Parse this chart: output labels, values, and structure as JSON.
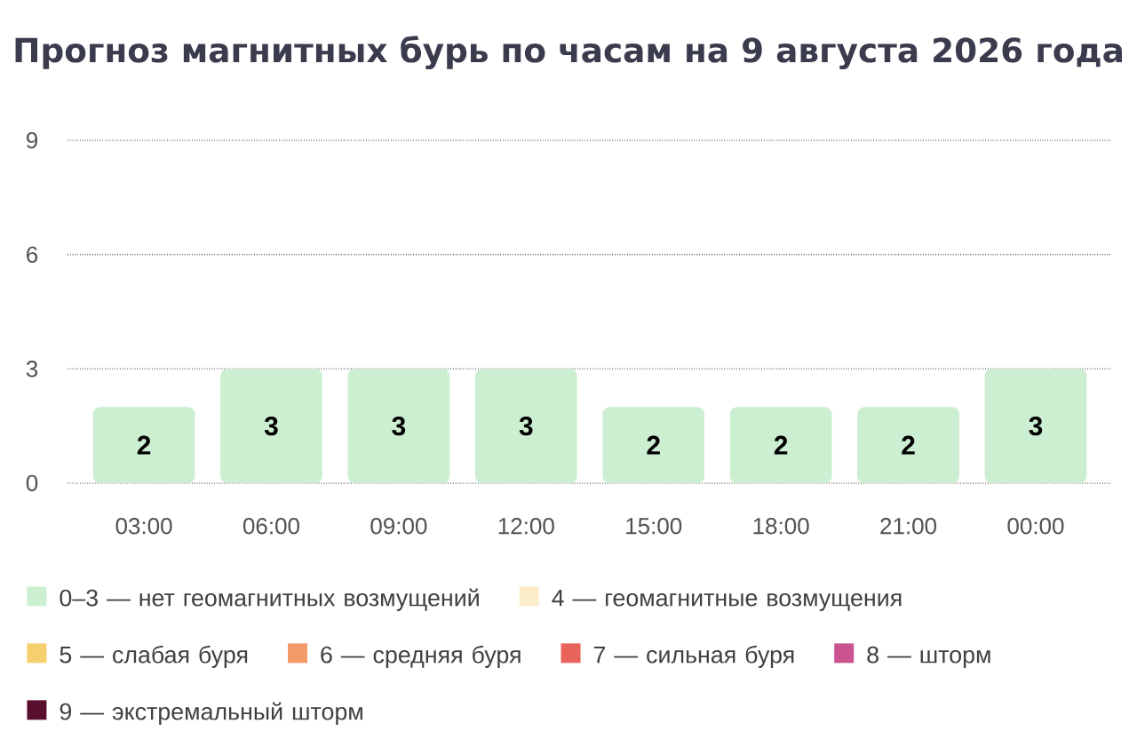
{
  "chart_data": {
    "type": "bar",
    "title": "Прогноз магнитных бурь по часам на 9 августа 2026 года",
    "categories": [
      "03:00",
      "06:00",
      "09:00",
      "12:00",
      "15:00",
      "18:00",
      "21:00",
      "00:00"
    ],
    "series": [
      {
        "name": "0–3 — нет геомагнитных возмущений",
        "color": "#cdefd1",
        "values": [
          2,
          3,
          3,
          3,
          2,
          2,
          2,
          3
        ]
      },
      {
        "name": "4 — геомагнитные возмущения",
        "color": "#fcedc8",
        "values": [
          null,
          null,
          null,
          null,
          null,
          null,
          null,
          null
        ]
      },
      {
        "name": "5 — слабая буря",
        "color": "#f6d06e",
        "values": [
          null,
          null,
          null,
          null,
          null,
          null,
          null,
          null
        ]
      },
      {
        "name": "6 — средняя буря",
        "color": "#f29a6a",
        "values": [
          null,
          null,
          null,
          null,
          null,
          null,
          null,
          null
        ]
      },
      {
        "name": "7 — сильная буря",
        "color": "#e8645a",
        "values": [
          null,
          null,
          null,
          null,
          null,
          null,
          null,
          null
        ]
      },
      {
        "name": "8 — шторм",
        "color": "#c9548f",
        "values": [
          null,
          null,
          null,
          null,
          null,
          null,
          null,
          null
        ]
      },
      {
        "name": "9 — экстремальный шторм",
        "color": "#5a0e2e",
        "values": [
          null,
          null,
          null,
          null,
          null,
          null,
          null,
          null
        ]
      }
    ],
    "ylim": [
      0,
      9
    ],
    "yticks": [
      0,
      3,
      6,
      9
    ],
    "grid": "y",
    "legend": "bottom",
    "data_labels": true
  }
}
